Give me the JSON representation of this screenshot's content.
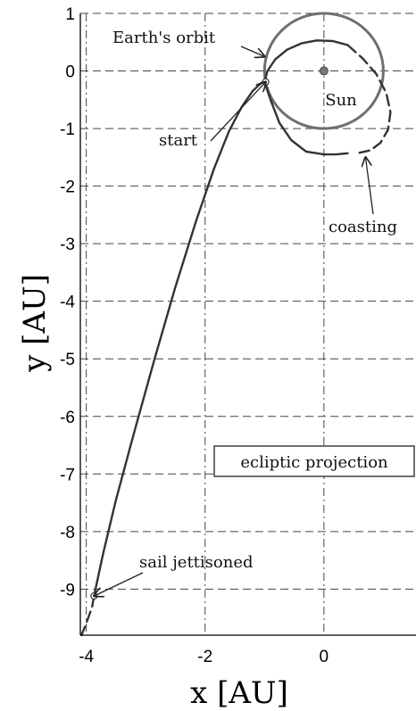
{
  "chart_data": {
    "type": "line",
    "xlabel": "x [AU]",
    "ylabel": "y [AU]",
    "xlim": [
      -4.1,
      1.55
    ],
    "ylim": [
      -9.8,
      1.0
    ],
    "x_ticks": [
      -4,
      -2,
      0
    ],
    "y_ticks": [
      1,
      0,
      -1,
      -2,
      -3,
      -4,
      -5,
      -6,
      -7,
      -8,
      -9
    ],
    "grid": true,
    "series": [
      {
        "role": "earth-orbit",
        "shape": "circle",
        "center": [
          0,
          0
        ],
        "radius": 1.0,
        "color": "#6f6f6f"
      },
      {
        "role": "trajectory-sail",
        "style": "solid",
        "color": "#333333",
        "x": [
          -3.87,
          -3.72,
          -3.5,
          -3.2,
          -2.85,
          -2.5,
          -2.15,
          -1.85,
          -1.6,
          -1.38,
          -1.2,
          -1.1,
          -1.04,
          -1.0,
          -0.9,
          -0.75,
          -0.55,
          -0.3,
          0.0,
          0.2,
          0.4
        ],
        "y": [
          -9.12,
          -8.4,
          -7.45,
          -6.3,
          -5.0,
          -3.75,
          -2.6,
          -1.7,
          -1.05,
          -0.62,
          -0.35,
          -0.25,
          -0.2,
          -0.19,
          -0.5,
          -0.9,
          -1.2,
          -1.4,
          -1.45,
          -1.45,
          -1.43
        ]
      },
      {
        "role": "trajectory-sail-loop",
        "style": "solid",
        "color": "#333333",
        "x": [
          -1.0,
          -0.95,
          -0.82,
          -0.62,
          -0.38,
          -0.12,
          0.15,
          0.4
        ],
        "y": [
          -0.19,
          0.0,
          0.2,
          0.37,
          0.48,
          0.53,
          0.52,
          0.45
        ]
      },
      {
        "role": "coasting",
        "style": "dashed",
        "color": "#333333",
        "x": [
          0.4,
          0.65,
          0.88,
          1.05,
          1.12,
          1.08,
          0.95,
          0.78,
          0.6
        ],
        "y": [
          0.45,
          0.22,
          -0.05,
          -0.38,
          -0.72,
          -1.02,
          -1.25,
          -1.38,
          -1.42
        ]
      },
      {
        "role": "coasting-after-jettison",
        "style": "dashed",
        "color": "#333333",
        "x": [
          -3.87,
          -3.9,
          -3.95,
          -4.01,
          -4.08
        ],
        "y": [
          -9.12,
          -9.3,
          -9.45,
          -9.62,
          -9.8
        ]
      }
    ],
    "points": [
      {
        "name": "Sun",
        "x": 0,
        "y": 0
      },
      {
        "name": "start",
        "x": -0.98,
        "y": -0.19
      },
      {
        "name": "sail jettisoned",
        "x": -3.87,
        "y": -9.12
      }
    ],
    "annotations": [
      {
        "text": "Earth's orbit",
        "target": [
          -1.0,
          0.25
        ]
      },
      {
        "text": "Sun",
        "target": [
          0,
          0
        ]
      },
      {
        "text": "start",
        "target": [
          -0.98,
          -0.19
        ]
      },
      {
        "text": "coasting",
        "target": [
          0.7,
          -1.5
        ]
      },
      {
        "text": "ecliptic projection",
        "boxed": true
      },
      {
        "text": "sail jettisoned",
        "target": [
          -3.87,
          -9.12
        ]
      }
    ]
  }
}
